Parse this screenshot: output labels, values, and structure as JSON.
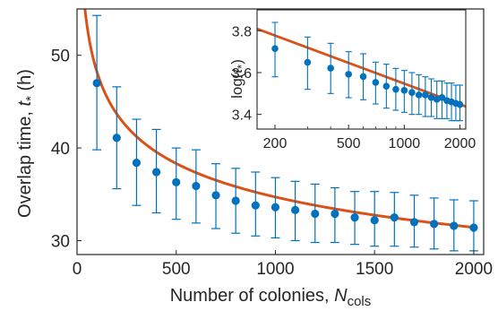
{
  "colors": {
    "points": "#0072BD",
    "fit": "#D95319",
    "axes": "#262626"
  },
  "chart_data": [
    {
      "type": "scatter",
      "xlabel_main": "Number of colonies, ",
      "xlabel_italic": "N",
      "xlabel_sub": "cols",
      "ylabel_main": "Overlap time, ",
      "ylabel_italic": "t",
      "ylabel_sub": "*",
      "ylabel_unit": " (h)",
      "xlim": [
        0,
        2050
      ],
      "ylim": [
        28.5,
        55
      ],
      "xticks": [
        0,
        500,
        1000,
        1500,
        2000
      ],
      "xtick_labels": [
        "0",
        "500",
        "1000",
        "1500",
        "2000"
      ],
      "yticks": [
        30,
        40,
        50
      ],
      "ytick_labels": [
        "30",
        "40",
        "50"
      ],
      "grid": false,
      "series": [
        {
          "kind": "points_with_errorbars",
          "x": [
            100,
            200,
            300,
            400,
            500,
            600,
            700,
            800,
            900,
            1000,
            1100,
            1200,
            1300,
            1400,
            1500,
            1600,
            1700,
            1800,
            1900,
            2000
          ],
          "y": [
            47.0,
            41.1,
            38.4,
            37.4,
            36.3,
            35.9,
            34.9,
            34.3,
            33.8,
            33.6,
            33.3,
            32.9,
            32.9,
            32.5,
            32.2,
            32.5,
            32.0,
            31.8,
            31.6,
            31.4
          ],
          "err_low": [
            39.8,
            35.6,
            33.8,
            33.0,
            32.3,
            31.9,
            31.3,
            30.8,
            30.5,
            30.3,
            30.0,
            29.8,
            29.8,
            29.6,
            29.4,
            29.4,
            29.3,
            29.1,
            28.9,
            28.9
          ],
          "err_high": [
            54.3,
            46.6,
            43.1,
            42.0,
            40.0,
            39.8,
            38.3,
            37.8,
            37.4,
            36.8,
            36.4,
            36.1,
            35.7,
            35.3,
            35.3,
            35.2,
            34.9,
            34.6,
            34.4,
            34.3
          ]
        },
        {
          "kind": "fit_curve",
          "formula": "y = 93.2 * x^(-0.143)",
          "x_range": [
            10,
            2020
          ]
        }
      ]
    },
    {
      "type": "scatter",
      "inset": true,
      "xscale": "log",
      "xlabel": "",
      "ylabel_main": "log(",
      "ylabel_italic": "t",
      "ylabel_sub": "*",
      "ylabel_close": ")",
      "xlim": [
        160,
        2150
      ],
      "ylim": [
        3.33,
        3.9
      ],
      "xticks": [
        200,
        500,
        1000,
        2000
      ],
      "xtick_labels": [
        "200",
        "500",
        "1000",
        "2000"
      ],
      "yticks": [
        3.4,
        3.6,
        3.8
      ],
      "ytick_labels": [
        "3.4",
        "3.6",
        "3.8"
      ],
      "grid": false,
      "series": [
        {
          "kind": "points_with_errorbars",
          "x": [
            200,
            300,
            400,
            500,
            600,
            700,
            800,
            900,
            1000,
            1100,
            1200,
            1300,
            1400,
            1500,
            1600,
            1700,
            1800,
            1900,
            2000
          ],
          "y": [
            3.715,
            3.649,
            3.621,
            3.592,
            3.581,
            3.553,
            3.535,
            3.52,
            3.515,
            3.505,
            3.493,
            3.493,
            3.481,
            3.472,
            3.481,
            3.466,
            3.46,
            3.453,
            3.447
          ],
          "err_low": [
            3.58,
            3.52,
            3.5,
            3.48,
            3.47,
            3.45,
            3.43,
            3.42,
            3.41,
            3.4,
            3.4,
            3.39,
            3.39,
            3.38,
            3.38,
            3.38,
            3.37,
            3.37,
            3.37
          ],
          "err_high": [
            3.84,
            3.77,
            3.74,
            3.7,
            3.69,
            3.65,
            3.64,
            3.62,
            3.61,
            3.6,
            3.59,
            3.58,
            3.57,
            3.56,
            3.56,
            3.55,
            3.55,
            3.54,
            3.54
          ]
        },
        {
          "kind": "fit_line",
          "formula": "y = 4.535 - 0.143 * ln(x)",
          "x_range": [
            160,
            2150
          ]
        }
      ]
    }
  ]
}
